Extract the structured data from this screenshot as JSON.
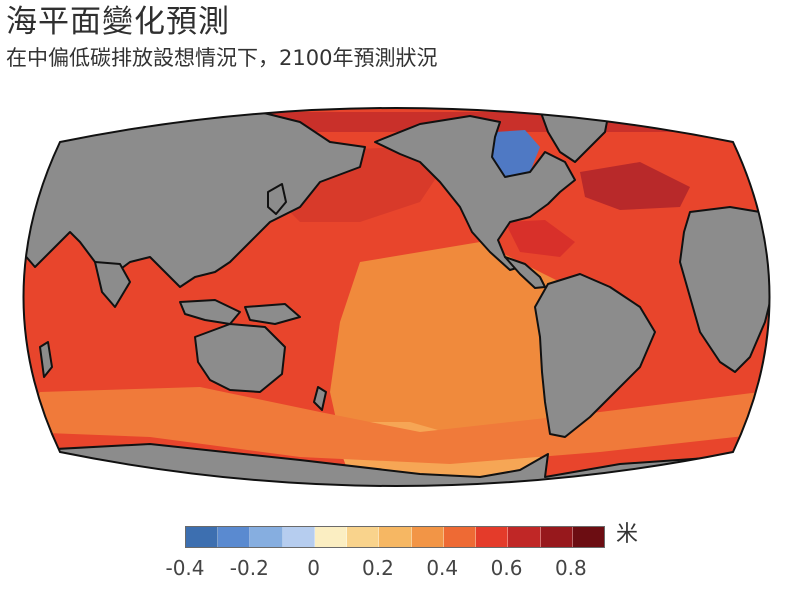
{
  "title": "海平面變化預測",
  "subtitle": "在中偏低碳排放設想情況下，2100年預測狀況",
  "legend": {
    "unit": "米",
    "colors": [
      "#3d6fb0",
      "#5a8ad0",
      "#86aee0",
      "#b6cdef",
      "#fbeec2",
      "#f9d38c",
      "#f6b763",
      "#f29546",
      "#ee6a34",
      "#e43b2a",
      "#c02726",
      "#97181c",
      "#6c0d12"
    ],
    "ticks": [
      "-0.4",
      "-0.2",
      "0",
      "0.2",
      "0.4",
      "0.6",
      "0.8"
    ]
  },
  "map_colors": {
    "ocean_base": "#e8452c",
    "ocean_orange": "#f08a3c",
    "ocean_light": "#f6a655",
    "ocean_dark": "#c9302a",
    "ocean_blue": "#4f79c4",
    "land": "#8c8c8c",
    "coast": "#111111"
  }
}
